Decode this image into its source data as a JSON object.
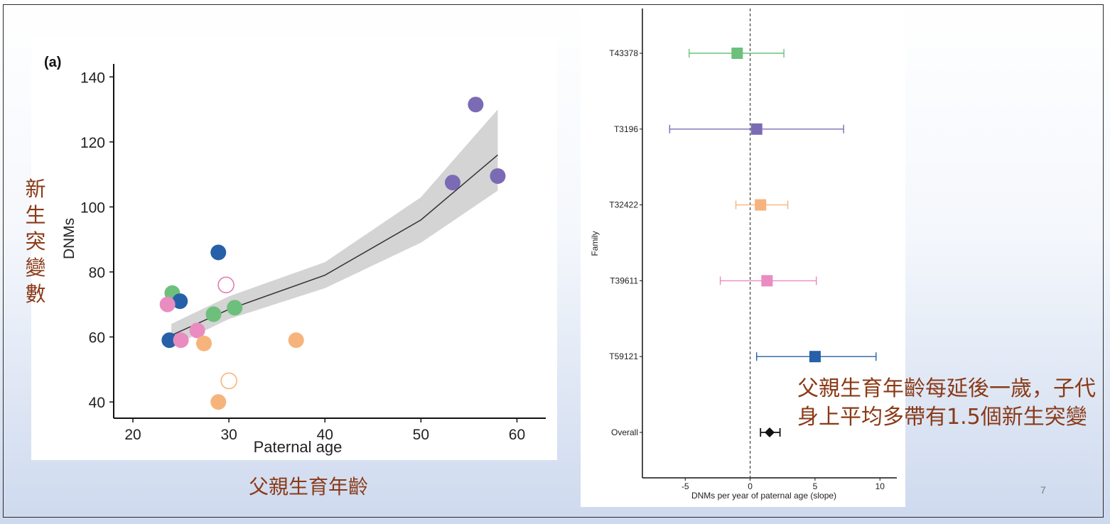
{
  "slide": {
    "y_annotation": "新生突變數",
    "x_annotation": "父親生育年齡",
    "conclusion": "父親生育年齡每延後一歲，子代身上平均多帶有1.5個新生突變",
    "page_number": "7"
  },
  "chart_data": [
    {
      "type": "scatter",
      "panel_label": "(a)",
      "xlabel": "Paternal age",
      "ylabel": "DNMs",
      "xlim": [
        18,
        63
      ],
      "ylim": [
        35,
        144
      ],
      "xticks": [
        20,
        30,
        40,
        50,
        60
      ],
      "yticks": [
        40,
        60,
        80,
        100,
        120,
        140
      ],
      "grid": false,
      "points": [
        {
          "x": 55.7,
          "y": 131.5,
          "color": "#7b6bb4",
          "filled": true
        },
        {
          "x": 58.0,
          "y": 109.5,
          "color": "#7b6bb4",
          "filled": true
        },
        {
          "x": 53.3,
          "y": 107.5,
          "color": "#7b6bb4",
          "filled": true
        },
        {
          "x": 28.9,
          "y": 86.0,
          "color": "#2560a8",
          "filled": true
        },
        {
          "x": 29.7,
          "y": 76.0,
          "color": "#dd7fb4",
          "filled": false
        },
        {
          "x": 24.1,
          "y": 73.5,
          "color": "#6cc07c",
          "filled": true
        },
        {
          "x": 24.9,
          "y": 71.0,
          "color": "#2560a8",
          "filled": true
        },
        {
          "x": 23.6,
          "y": 70.0,
          "color": "#e98cc0",
          "filled": true
        },
        {
          "x": 30.6,
          "y": 69.0,
          "color": "#6cc07c",
          "filled": true
        },
        {
          "x": 28.4,
          "y": 67.0,
          "color": "#6cc07c",
          "filled": true
        },
        {
          "x": 26.7,
          "y": 62.0,
          "color": "#e98cc0",
          "filled": true
        },
        {
          "x": 23.8,
          "y": 59.0,
          "color": "#2560a8",
          "filled": true
        },
        {
          "x": 25.0,
          "y": 59.0,
          "color": "#e98cc0",
          "filled": true
        },
        {
          "x": 27.4,
          "y": 58.0,
          "color": "#f6b47c",
          "filled": true
        },
        {
          "x": 37.0,
          "y": 59.0,
          "color": "#f6b47c",
          "filled": true
        },
        {
          "x": 30.0,
          "y": 46.5,
          "color": "#f6b47c",
          "filled": false
        },
        {
          "x": 28.9,
          "y": 40.0,
          "color": "#f6b47c",
          "filled": true
        }
      ],
      "fit_line": {
        "x": [
          24,
          30,
          40,
          50,
          58
        ],
        "y": [
          60.5,
          68.5,
          79.0,
          96.0,
          116.0
        ],
        "band_lower": [
          57.0,
          65.5,
          75.0,
          89.0,
          105.0
        ],
        "band_upper": [
          64.0,
          72.5,
          83.0,
          103.0,
          130.0
        ]
      }
    },
    {
      "type": "forest",
      "xlabel": "DNMs per year of paternal age (slope)",
      "ylabel": "Family",
      "xlim": [
        -8.3,
        11.3
      ],
      "xticks": [
        -5,
        0,
        5,
        10
      ],
      "reference_line_x": 0,
      "rows": [
        {
          "label": "T43378",
          "estimate": -1.0,
          "lower": -4.7,
          "upper": 2.6,
          "color": "#6cc07c",
          "marker": "square"
        },
        {
          "label": "T3196",
          "estimate": 0.5,
          "lower": -6.2,
          "upper": 7.2,
          "color": "#7b6bb4",
          "marker": "square"
        },
        {
          "label": "T32422",
          "estimate": 0.8,
          "lower": -1.1,
          "upper": 2.9,
          "color": "#f6b47c",
          "marker": "square"
        },
        {
          "label": "T39611",
          "estimate": 1.3,
          "lower": -2.3,
          "upper": 5.1,
          "color": "#e98cc0",
          "marker": "square"
        },
        {
          "label": "T59121",
          "estimate": 5.0,
          "lower": 0.5,
          "upper": 9.7,
          "color": "#2560a8",
          "marker": "square"
        },
        {
          "label": "Overall",
          "estimate": 1.5,
          "lower": 0.8,
          "upper": 2.3,
          "color": "#111111",
          "marker": "diamond"
        }
      ]
    }
  ]
}
